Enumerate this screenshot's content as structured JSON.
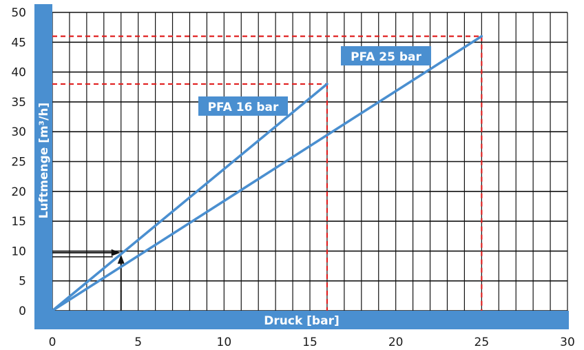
{
  "chart_data": {
    "type": "line",
    "title": "",
    "xlabel": "Druck [bar]",
    "ylabel": "Luftmenge [m³/h]",
    "xlim": [
      0,
      30
    ],
    "ylim": [
      0,
      50
    ],
    "x_ticks": [
      0,
      5,
      10,
      15,
      20,
      25,
      30
    ],
    "y_ticks": [
      0,
      5,
      10,
      15,
      20,
      25,
      30,
      35,
      40,
      45,
      50
    ],
    "grid": true,
    "series": [
      {
        "name": "PFA 16 bar",
        "x": [
          0,
          16
        ],
        "y": [
          0,
          38
        ]
      },
      {
        "name": "PFA 25 bar",
        "x": [
          0,
          25
        ],
        "y": [
          0,
          46
        ]
      }
    ],
    "reference_lines": [
      {
        "series": "PFA 16 bar",
        "x": 16,
        "y": 38
      },
      {
        "series": "PFA 25 bar",
        "x": 25,
        "y": 46
      }
    ],
    "example_reading": {
      "x": 4,
      "y": 9.5
    }
  },
  "colors": {
    "series_line": "#4a8fd0",
    "axis_band": "#4a8fd0",
    "reference_line": "#e02020",
    "grid": "#111111",
    "arrow": "#111111"
  }
}
